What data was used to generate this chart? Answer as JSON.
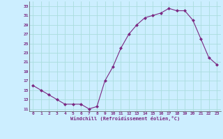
{
  "x": [
    0,
    1,
    2,
    3,
    4,
    5,
    6,
    7,
    8,
    9,
    10,
    11,
    12,
    13,
    14,
    15,
    16,
    17,
    18,
    19,
    20,
    21,
    22,
    23
  ],
  "y": [
    16,
    15,
    14,
    13,
    12,
    12,
    12,
    11,
    11.5,
    17,
    20,
    24,
    27,
    29,
    30.5,
    31,
    31.5,
    32.5,
    32,
    32,
    30,
    26,
    22,
    20.5
  ],
  "line_color": "#7b2882",
  "marker": "D",
  "marker_size": 2.0,
  "bg_color": "#cceeff",
  "grid_color": "#aadddd",
  "xlabel": "Windchill (Refroidissement éolien,°C)",
  "xlabel_color": "#7b2882",
  "tick_color": "#7b2882",
  "ylim": [
    10.5,
    34
  ],
  "yticks": [
    11,
    13,
    15,
    17,
    19,
    21,
    23,
    25,
    27,
    29,
    31,
    33
  ],
  "xticks": [
    0,
    1,
    2,
    3,
    4,
    5,
    6,
    7,
    8,
    9,
    10,
    11,
    12,
    13,
    14,
    15,
    16,
    17,
    18,
    19,
    20,
    21,
    22,
    23
  ]
}
